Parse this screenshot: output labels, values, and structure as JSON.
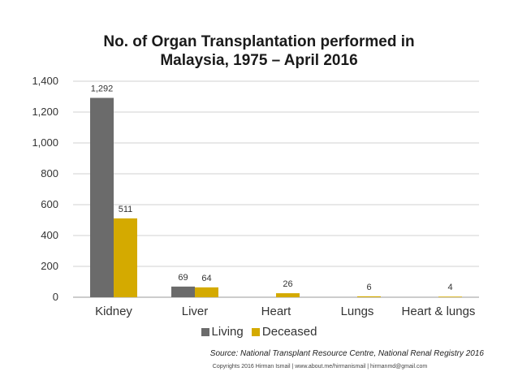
{
  "chart_data": {
    "type": "bar",
    "title_lines": [
      "No. of Organ Transplantation performed in",
      "Malaysia, 1975 – April 2016"
    ],
    "categories": [
      "Kidney",
      "Liver",
      "Heart",
      "Lungs",
      "Heart & lungs"
    ],
    "series": [
      {
        "name": "Living",
        "color": "#6b6b6b",
        "values": [
          1292,
          69,
          null,
          null,
          null
        ],
        "labels": [
          "1,292",
          "69",
          "",
          "",
          ""
        ]
      },
      {
        "name": "Deceased",
        "color": "#d4aa00",
        "values": [
          511,
          64,
          26,
          6,
          4
        ],
        "labels": [
          "511",
          "64",
          "26",
          "6",
          "4"
        ]
      }
    ],
    "ylim": [
      0,
      1400
    ],
    "yticks": [
      0,
      200,
      400,
      600,
      800,
      1000,
      1200,
      1400
    ],
    "ytick_labels": [
      "0",
      "200",
      "400",
      "600",
      "800",
      "1,000",
      "1,200",
      "1,400"
    ],
    "grid": true,
    "legend_position": "bottom"
  },
  "source_note": "Source: National Transplant Resource Centre, National Renal Registry 2016",
  "copyright": "Copyrights 2016 Hirman Ismail | www.about.me/hirmanismail | hirmanmd@gmail.com"
}
